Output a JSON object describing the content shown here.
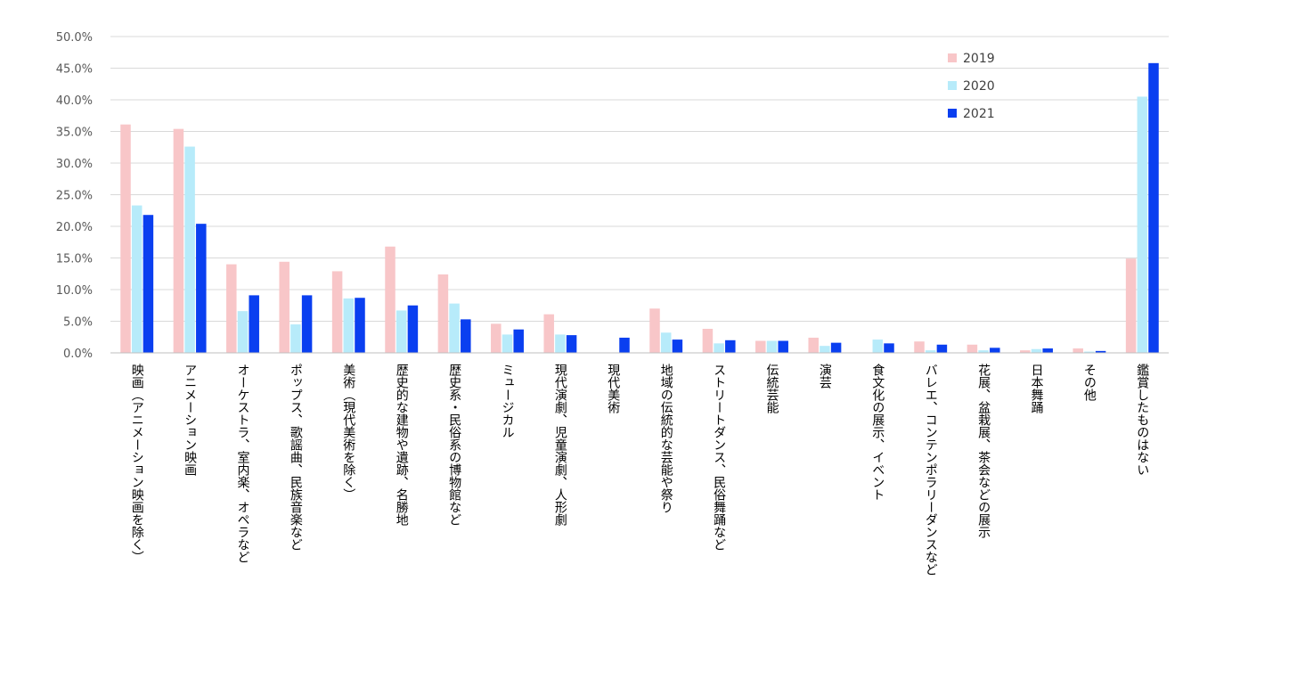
{
  "chart_data": {
    "type": "bar",
    "title": "",
    "xlabel": "",
    "ylabel": "",
    "ylim": [
      0,
      50
    ],
    "y_ticks": [
      0,
      5,
      10,
      15,
      20,
      25,
      30,
      35,
      40,
      45,
      50
    ],
    "y_tick_labels": [
      "0.0%",
      "5.0%",
      "10.0%",
      "15.0%",
      "20.0%",
      "25.0%",
      "30.0%",
      "35.0%",
      "40.0%",
      "45.0%",
      "50.0%"
    ],
    "grid": true,
    "legend_position": "top-right",
    "categories": [
      "映画（アニメーション映画を除く）",
      "アニメーション映画",
      "オーケストラ、室内楽、オペラなど",
      "ポップス、歌謡曲、民族音楽など",
      "美術（現代美術を除く）",
      "歴史的な建物や遺跡、名勝地",
      "歴史系・民俗系の博物館など",
      "ミュージカル",
      "現代演劇、児童演劇、人形劇",
      "現代美術",
      "地域の伝統的な芸能や祭り",
      "ストリートダンス、民俗舞踊など",
      "伝統芸能",
      "演芸",
      "食文化の展示、イベント",
      "バレエ、コンテンポラリーダンスなど",
      "花展、盆栽展、茶会などの展示",
      "日本舞踊",
      "その他",
      "鑑賞したものはない"
    ],
    "series": [
      {
        "name": "2019",
        "color": "#f8c6c8",
        "values": [
          36.1,
          35.4,
          14.0,
          14.4,
          12.9,
          16.8,
          12.4,
          4.6,
          6.1,
          0.0,
          7.0,
          3.8,
          1.9,
          2.4,
          0.0,
          1.8,
          1.3,
          0.4,
          0.7,
          14.9
        ]
      },
      {
        "name": "2020",
        "color": "#b7ebfa",
        "values": [
          23.3,
          32.6,
          6.6,
          4.5,
          8.6,
          6.7,
          7.8,
          2.9,
          2.9,
          0.0,
          3.2,
          1.5,
          1.9,
          1.1,
          2.1,
          0.4,
          0.4,
          0.6,
          0.2,
          40.5
        ]
      },
      {
        "name": "2021",
        "color": "#0a3ff0",
        "values": [
          21.8,
          20.4,
          9.1,
          9.1,
          8.7,
          7.5,
          5.3,
          3.7,
          2.8,
          2.4,
          2.1,
          2.0,
          1.9,
          1.6,
          1.5,
          1.3,
          0.8,
          0.7,
          0.3,
          45.8
        ]
      }
    ]
  }
}
